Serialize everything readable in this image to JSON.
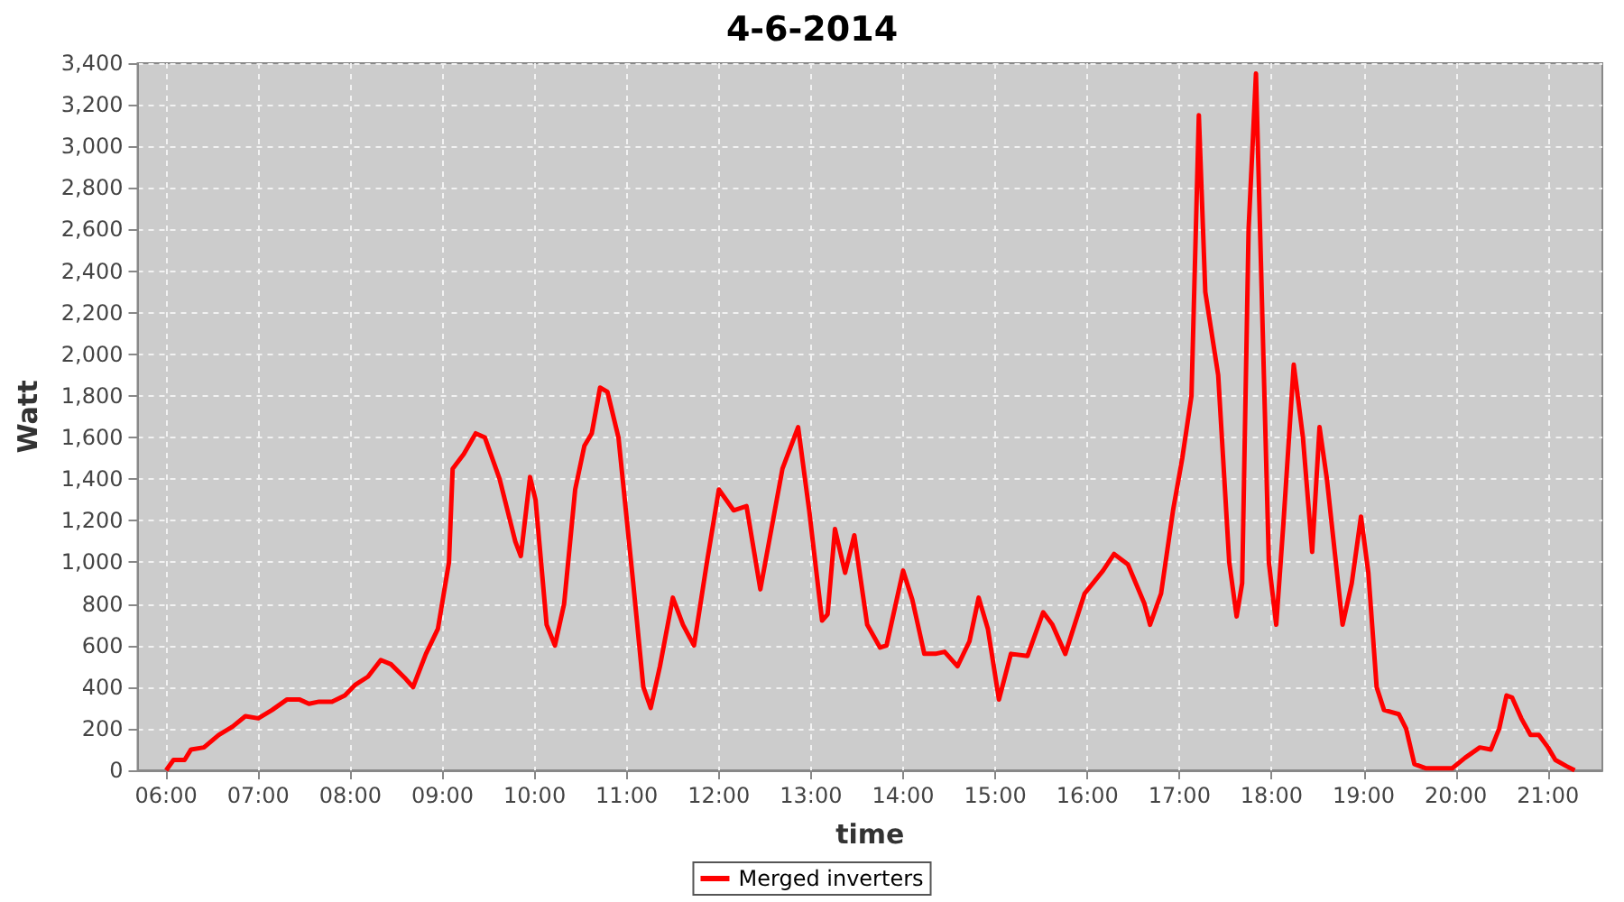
{
  "chart_data": {
    "type": "line",
    "title": "4-6-2014",
    "xlabel": "time",
    "ylabel": "Watt",
    "xlim": [
      5.69,
      21.59
    ],
    "xticks": [
      {
        "value": 6,
        "label": "06:00"
      },
      {
        "value": 7,
        "label": "07:00"
      },
      {
        "value": 8,
        "label": "08:00"
      },
      {
        "value": 9,
        "label": "09:00"
      },
      {
        "value": 10,
        "label": "10:00"
      },
      {
        "value": 11,
        "label": "11:00"
      },
      {
        "value": 12,
        "label": "12:00"
      },
      {
        "value": 13,
        "label": "13:00"
      },
      {
        "value": 14,
        "label": "14:00"
      },
      {
        "value": 15,
        "label": "15:00"
      },
      {
        "value": 16,
        "label": "16:00"
      },
      {
        "value": 17,
        "label": "17:00"
      },
      {
        "value": 18,
        "label": "18:00"
      },
      {
        "value": 19,
        "label": "19:00"
      },
      {
        "value": 20,
        "label": "20:00"
      },
      {
        "value": 21,
        "label": "21:00"
      }
    ],
    "ylim": [
      0,
      3400
    ],
    "yticks": [
      {
        "value": 0,
        "label": "0"
      },
      {
        "value": 200,
        "label": "200"
      },
      {
        "value": 400,
        "label": "400"
      },
      {
        "value": 600,
        "label": "600"
      },
      {
        "value": 800,
        "label": "800"
      },
      {
        "value": 1000,
        "label": "1,000"
      },
      {
        "value": 1200,
        "label": "1,200"
      },
      {
        "value": 1400,
        "label": "1,400"
      },
      {
        "value": 1600,
        "label": "1,600"
      },
      {
        "value": 1800,
        "label": "1,800"
      },
      {
        "value": 2000,
        "label": "2,000"
      },
      {
        "value": 2200,
        "label": "2,200"
      },
      {
        "value": 2400,
        "label": "2,400"
      },
      {
        "value": 2600,
        "label": "2,600"
      },
      {
        "value": 2800,
        "label": "2,800"
      },
      {
        "value": 3000,
        "label": "3,000"
      },
      {
        "value": 3200,
        "label": "3,200"
      },
      {
        "value": 3400,
        "label": "3,400"
      }
    ],
    "grid": true,
    "legend": "bottom",
    "marker": "none",
    "line_style": "solid",
    "series": [
      {
        "name": "Merged inverters",
        "color": "#ff0000",
        "x": [
          6.0,
          6.08,
          6.2,
          6.27,
          6.41,
          6.57,
          6.72,
          6.86,
          7.0,
          7.15,
          7.31,
          7.45,
          7.55,
          7.66,
          7.8,
          7.94,
          8.05,
          8.19,
          8.33,
          8.44,
          8.6,
          8.68,
          8.82,
          8.95,
          9.07,
          9.11,
          9.23,
          9.36,
          9.46,
          9.62,
          9.79,
          9.85,
          9.95,
          10.01,
          10.13,
          10.22,
          10.32,
          10.44,
          10.54,
          10.62,
          10.71,
          10.79,
          10.91,
          11.07,
          11.18,
          11.26,
          11.36,
          11.5,
          11.61,
          11.73,
          11.87,
          12.0,
          12.16,
          12.3,
          12.45,
          12.69,
          12.86,
          12.98,
          13.12,
          13.18,
          13.26,
          13.37,
          13.47,
          13.61,
          13.75,
          13.82,
          14.0,
          14.1,
          14.23,
          14.35,
          14.45,
          14.59,
          14.72,
          14.82,
          14.92,
          15.04,
          15.17,
          15.35,
          15.52,
          15.62,
          15.76,
          15.97,
          16.17,
          16.29,
          16.44,
          16.62,
          16.68,
          16.8,
          16.93,
          17.03,
          17.13,
          17.21,
          17.28,
          17.42,
          17.54,
          17.62,
          17.68,
          17.75,
          17.83,
          17.91,
          17.97,
          18.05,
          18.13,
          18.24,
          18.34,
          18.44,
          18.52,
          18.6,
          18.77,
          18.87,
          18.97,
          19.05,
          19.14,
          19.22,
          19.38,
          19.46,
          19.55,
          19.67,
          19.96,
          20.1,
          20.26,
          20.38,
          20.47,
          20.55,
          20.61,
          20.71,
          20.81,
          20.9,
          21.0,
          21.08,
          21.2,
          21.29
        ],
        "values": [
          0,
          50,
          50,
          100,
          110,
          170,
          210,
          260,
          250,
          290,
          340,
          340,
          320,
          330,
          330,
          360,
          410,
          450,
          530,
          510,
          440,
          400,
          560,
          680,
          1000,
          1450,
          1520,
          1620,
          1600,
          1400,
          1100,
          1030,
          1410,
          1300,
          700,
          600,
          800,
          1350,
          1560,
          1620,
          1840,
          1820,
          1600,
          900,
          400,
          300,
          500,
          830,
          700,
          600,
          1000,
          1350,
          1250,
          1270,
          870,
          1450,
          1650,
          1250,
          720,
          750,
          1160,
          950,
          1130,
          700,
          590,
          600,
          960,
          820,
          560,
          560,
          570,
          500,
          620,
          830,
          680,
          340,
          560,
          550,
          760,
          700,
          560,
          850,
          960,
          1040,
          990,
          800,
          700,
          850,
          1250,
          1500,
          1800,
          3150,
          2300,
          1900,
          1000,
          740,
          900,
          2600,
          3350,
          2000,
          1000,
          700,
          1200,
          1950,
          1600,
          1050,
          1650,
          1400,
          700,
          900,
          1220,
          950,
          400,
          290,
          270,
          200,
          30,
          10,
          10,
          60,
          110,
          100,
          200,
          360,
          350,
          250,
          170,
          170,
          110,
          50,
          20,
          0
        ]
      }
    ]
  }
}
